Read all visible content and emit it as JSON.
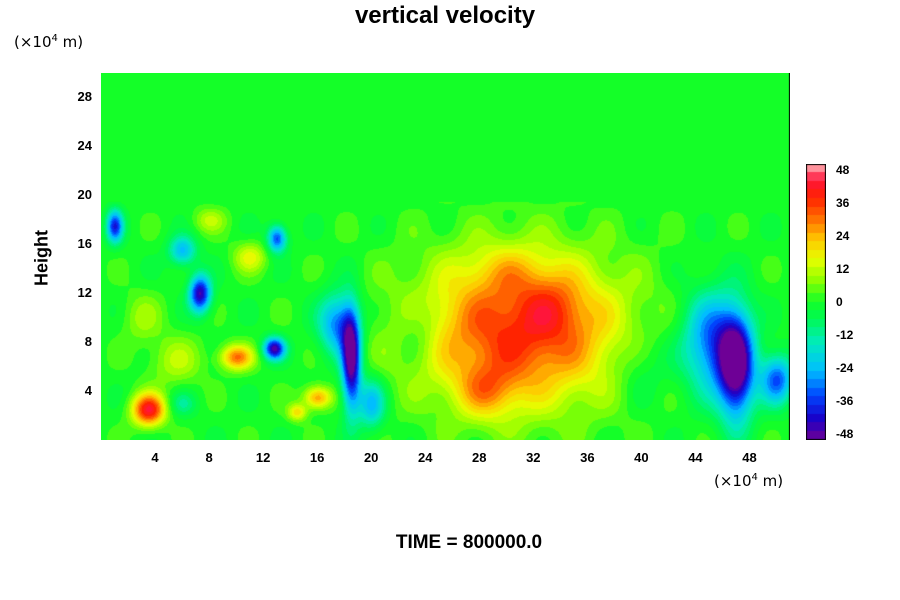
{
  "chart_data": {
    "type": "heatmap",
    "title": "vertical velocity",
    "ylabel": "Height",
    "y_unit": "(×10^4 m)",
    "x_unit": "(×10^4 m)",
    "xlim": [
      0,
      51
    ],
    "ylim": [
      0,
      30
    ],
    "x_ticks": [
      "4",
      "8",
      "12",
      "16",
      "20",
      "24",
      "28",
      "32",
      "36",
      "40",
      "44",
      "48"
    ],
    "y_ticks": [
      "4",
      "8",
      "12",
      "16",
      "20",
      "24",
      "28"
    ],
    "colorbar": {
      "ticks": [
        "48",
        "36",
        "24",
        "12",
        "0",
        "-12",
        "-24",
        "-36",
        "-48"
      ],
      "min": -48,
      "max": 48
    },
    "features": [
      {
        "x": 31,
        "y": 9,
        "value": 38,
        "note": "large updraft"
      },
      {
        "x": 28.5,
        "y": 4,
        "value": 48,
        "note": "updraft core"
      },
      {
        "x": 33.5,
        "y": 11,
        "value": 40
      },
      {
        "x": 3.5,
        "y": 2.5,
        "value": 40
      },
      {
        "x": 10,
        "y": 6.8,
        "value": 28
      },
      {
        "x": 16,
        "y": 3.5,
        "value": 28
      },
      {
        "x": 47,
        "y": 6,
        "value": -48,
        "note": "downdraft"
      },
      {
        "x": 45.5,
        "y": 8,
        "value": -38
      },
      {
        "x": 18.5,
        "y": 7,
        "value": -48
      },
      {
        "x": 18,
        "y": 9.5,
        "value": -36
      },
      {
        "x": 7.3,
        "y": 12,
        "value": -40
      },
      {
        "x": 12.8,
        "y": 7.5,
        "value": -44
      },
      {
        "x": 1,
        "y": 17.5,
        "value": -34
      },
      {
        "x": 13,
        "y": 16.5,
        "value": -32
      }
    ]
  },
  "footer": {
    "time_label": "TIME = 800000.0"
  }
}
